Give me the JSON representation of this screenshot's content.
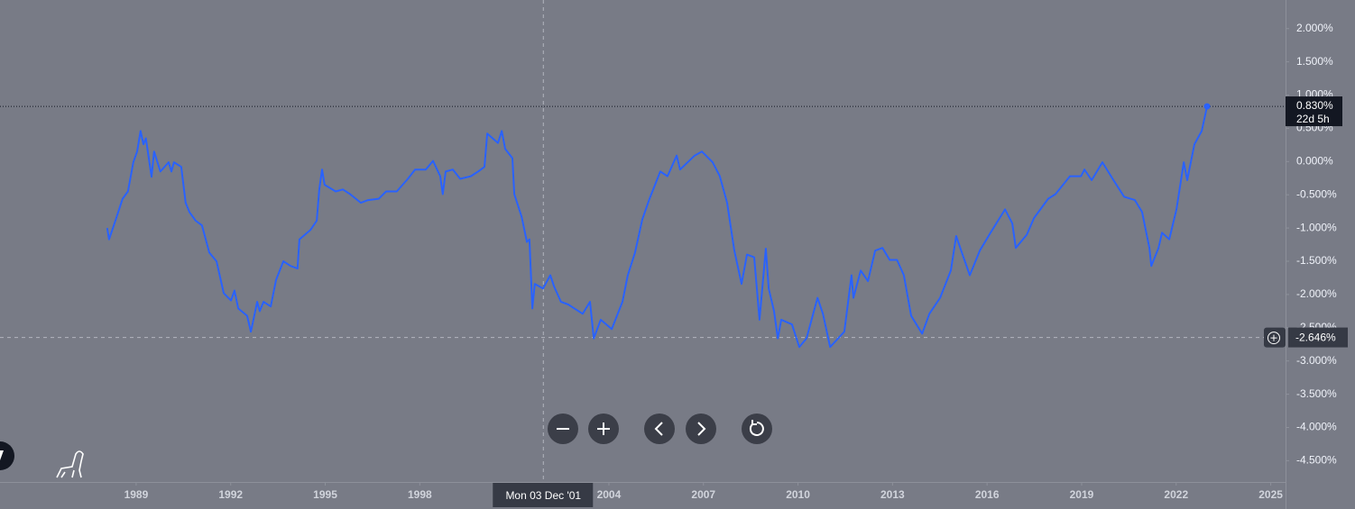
{
  "chart_data": {
    "type": "line",
    "color": "#2962ff",
    "background": "#787b86",
    "x": [
      1988.08,
      1988.14,
      1988.34,
      1988.57,
      1988.74,
      1988.91,
      1989.03,
      1989.14,
      1989.23,
      1989.31,
      1989.49,
      1989.57,
      1989.77,
      1990.03,
      1990.12,
      1990.2,
      1990.43,
      1990.57,
      1990.69,
      1990.89,
      1991.09,
      1991.32,
      1991.55,
      1991.78,
      1992.01,
      1992.12,
      1992.24,
      1992.52,
      1992.64,
      1992.84,
      1992.92,
      1993.04,
      1993.27,
      1993.44,
      1993.67,
      1993.9,
      1994.12,
      1994.18,
      1994.53,
      1994.73,
      1994.81,
      1994.9,
      1994.98,
      1995.33,
      1995.56,
      1995.79,
      1996.13,
      1996.36,
      1996.7,
      1996.93,
      1997.27,
      1997.62,
      1997.85,
      1998.19,
      1998.42,
      1998.65,
      1998.73,
      1998.82,
      1999.05,
      1999.28,
      1999.62,
      1999.85,
      2000.05,
      2000.14,
      2000.48,
      2000.6,
      2000.71,
      2000.94,
      2001.0,
      2001.23,
      2001.4,
      2001.48,
      2001.57,
      2001.65,
      2001.91,
      2002.14,
      2002.26,
      2002.48,
      2002.71,
      2003.17,
      2003.4,
      2003.52,
      2003.74,
      2004.09,
      2004.43,
      2004.6,
      2004.83,
      2005.06,
      2005.29,
      2005.63,
      2005.86,
      2006.15,
      2006.26,
      2006.72,
      2006.95,
      2007.29,
      2007.52,
      2007.75,
      2007.98,
      2008.21,
      2008.38,
      2008.61,
      2008.78,
      2008.98,
      2009.07,
      2009.24,
      2009.36,
      2009.47,
      2009.81,
      2010.04,
      2010.27,
      2010.62,
      2010.79,
      2011.02,
      2011.47,
      2011.7,
      2011.76,
      2011.99,
      2012.22,
      2012.45,
      2012.68,
      2012.91,
      2013.14,
      2013.36,
      2013.59,
      2013.94,
      2014.17,
      2014.51,
      2014.85,
      2015.02,
      2015.25,
      2015.45,
      2015.77,
      2016.11,
      2016.57,
      2016.8,
      2016.91,
      2017.26,
      2017.49,
      2017.94,
      2018.17,
      2018.63,
      2018.98,
      2019.09,
      2019.32,
      2019.66,
      2020.01,
      2020.35,
      2020.69,
      2020.92,
      2021.15,
      2021.21,
      2021.44,
      2021.55,
      2021.78,
      2022.01,
      2022.24,
      2022.35,
      2022.58,
      2022.81,
      2022.98
    ],
    "values": [
      -1.0,
      -1.17,
      -0.89,
      -0.56,
      -0.45,
      -0.01,
      0.15,
      0.46,
      0.26,
      0.35,
      -0.23,
      0.15,
      -0.15,
      -0.01,
      -0.15,
      -0.01,
      -0.08,
      -0.62,
      -0.76,
      -0.89,
      -0.96,
      -1.37,
      -1.5,
      -1.98,
      -2.09,
      -1.94,
      -2.21,
      -2.32,
      -2.56,
      -2.11,
      -2.25,
      -2.11,
      -2.18,
      -1.78,
      -1.5,
      -1.57,
      -1.61,
      -1.17,
      -1.03,
      -0.89,
      -0.42,
      -0.12,
      -0.35,
      -0.45,
      -0.42,
      -0.49,
      -0.62,
      -0.58,
      -0.56,
      -0.45,
      -0.45,
      -0.26,
      -0.12,
      -0.12,
      0.01,
      -0.22,
      -0.49,
      -0.15,
      -0.12,
      -0.26,
      -0.22,
      -0.15,
      -0.08,
      0.42,
      0.28,
      0.46,
      0.19,
      0.05,
      -0.49,
      -0.83,
      -1.21,
      -1.17,
      -2.21,
      -1.84,
      -1.91,
      -1.71,
      -1.88,
      -2.11,
      -2.15,
      -2.29,
      -2.11,
      -2.66,
      -2.38,
      -2.52,
      -2.11,
      -1.71,
      -1.37,
      -0.87,
      -0.56,
      -0.15,
      -0.22,
      0.09,
      -0.12,
      0.09,
      0.15,
      -0.01,
      -0.22,
      -0.62,
      -1.34,
      -1.84,
      -1.4,
      -1.44,
      -2.38,
      -1.31,
      -1.91,
      -2.25,
      -2.66,
      -2.38,
      -2.45,
      -2.79,
      -2.66,
      -2.05,
      -2.29,
      -2.79,
      -2.56,
      -1.71,
      -2.05,
      -1.64,
      -1.8,
      -1.34,
      -1.3,
      -1.48,
      -1.48,
      -1.71,
      -2.32,
      -2.59,
      -2.29,
      -2.05,
      -1.64,
      -1.12,
      -1.44,
      -1.71,
      -1.34,
      -1.07,
      -0.72,
      -0.93,
      -1.3,
      -1.1,
      -0.85,
      -0.56,
      -0.49,
      -0.22,
      -0.22,
      -0.12,
      -0.28,
      -0.01,
      -0.28,
      -0.53,
      -0.58,
      -0.76,
      -1.3,
      -1.57,
      -1.3,
      -1.07,
      -1.17,
      -0.72,
      -0.01,
      -0.28,
      0.26,
      0.46,
      0.83
    ],
    "xlim": [
      1984.68,
      2025.47
    ],
    "xticks": [
      1989,
      1992,
      1995,
      1998,
      2004,
      2007,
      2010,
      2013,
      2016,
      2019,
      2022,
      2025
    ],
    "ylim": [
      -4.82,
      2.43
    ],
    "yticks": [
      {
        "value": 2,
        "label": "2.000%"
      },
      {
        "value": 1.5,
        "label": "1.500%"
      },
      {
        "value": 1,
        "label": "1.000%"
      },
      {
        "value": 0.5,
        "label": "0.500%"
      },
      {
        "value": 0,
        "label": "0.000%"
      },
      {
        "value": -0.5,
        "label": "-0.500%"
      },
      {
        "value": -1,
        "label": "-1.000%"
      },
      {
        "value": -1.5,
        "label": "-1.500%"
      },
      {
        "value": -2,
        "label": "-2.000%"
      },
      {
        "value": -2.5,
        "label": "-2.500%"
      },
      {
        "value": -3,
        "label": "-3.000%"
      },
      {
        "value": -3.5,
        "label": "-3.500%"
      },
      {
        "value": -4,
        "label": "-4.000%"
      },
      {
        "value": -4.5,
        "label": "-4.500%"
      }
    ],
    "last_value": {
      "value": 0.83,
      "label": "0.830%",
      "countdown": "22d 5h"
    },
    "crosshair": {
      "x": 2001.92,
      "x_label": "Mon 03 Dec '01",
      "y": -2.646,
      "y_label": "-2.646%"
    }
  }
}
